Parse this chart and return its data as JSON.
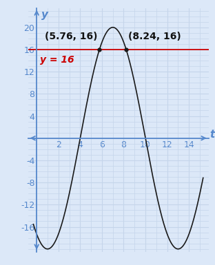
{
  "xlabel": "t",
  "ylabel": "y",
  "amplitude": 20,
  "period": 12,
  "phase_shift": 7,
  "y_line": 16,
  "x_intersect1": 5.76,
  "x_intersect2": 8.24,
  "t_start": -0.3,
  "t_end": 15.3,
  "xlim": [
    -0.8,
    15.8
  ],
  "ylim": [
    -20.5,
    23.5
  ],
  "grid_color": "#c5d5ea",
  "bg_color": "#dce8f8",
  "plot_bg_color": "#dce8f8",
  "curve_color": "#1a1a1a",
  "line_color": "#cc0000",
  "axes_color": "#5588cc",
  "text_color_black": "#111111",
  "text_color_red": "#cc0000",
  "point_label1": "(5.76, 16)",
  "point_label2": "(8.24, 16)",
  "line_label": "y = 16",
  "x_ticks": [
    2,
    4,
    6,
    8,
    10,
    12,
    14
  ],
  "y_ticks": [
    -16,
    -12,
    -8,
    -4,
    4,
    8,
    12,
    16,
    20
  ],
  "tick_fontsize": 9,
  "annotation_fontsize": 10,
  "axis_label_fontsize": 11
}
